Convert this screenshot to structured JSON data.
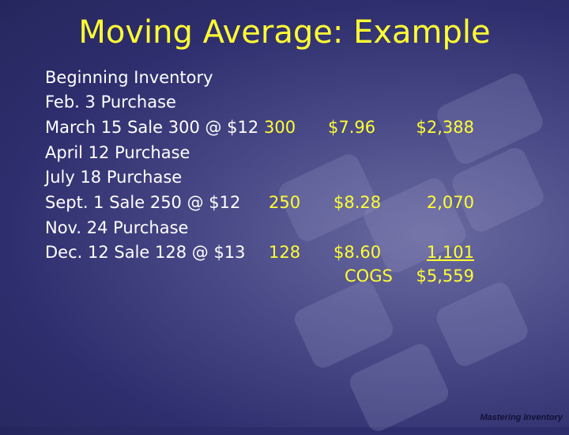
{
  "title": "Moving Average: Example",
  "lines": [
    "Beginning Inventory",
    "Feb. 3 Purchase",
    "March 15 Sale 300 @ $12",
    "April 12 Purchase",
    "July 18 Purchase",
    "Sept. 1 Sale 250 @ $12",
    "Nov. 24 Purchase",
    "Dec. 12 Sale 128 @ $13"
  ],
  "sales": [
    {
      "units": "300",
      "cost": "$7.96",
      "total": "$2,388"
    },
    {
      "units": "250",
      "cost": "$8.28",
      "total": "2,070"
    },
    {
      "units": "128",
      "cost": "$8.60",
      "total": "1,101"
    }
  ],
  "cogs_label": "COGS",
  "cogs_total": "$5,559",
  "footer": "Mastering Inventory"
}
